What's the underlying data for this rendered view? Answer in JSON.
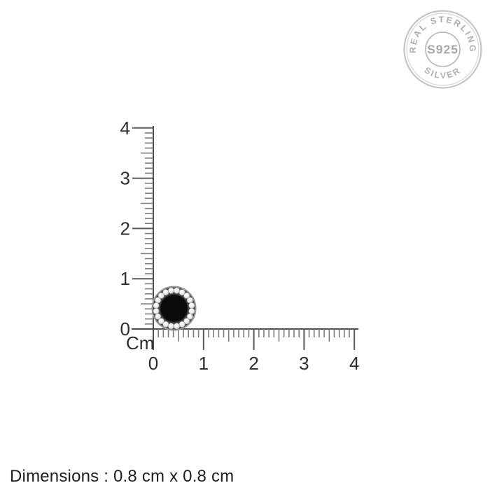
{
  "badge": {
    "arc_top_text": "REAL STERLING",
    "arc_bottom_text": "SILVER",
    "center_text": "S925",
    "ring_color": "#c5c5c5",
    "text_color": "#ababab"
  },
  "ruler": {
    "unit_label": "Cm",
    "vertical_labels": [
      "0",
      "1",
      "2",
      "3",
      "4"
    ],
    "horizontal_labels": [
      "0",
      "1",
      "2",
      "3",
      "4"
    ],
    "subdivisions_per_cm": 10,
    "line_color": "#4f4f4f",
    "major_tick_color": "#5a5a5a",
    "minor_tick_color": "#7b7b7b",
    "label_color": "#2e2e2e"
  },
  "product": {
    "name": "round black stone halo stud with clear stone border",
    "halo_stones_count": 20,
    "center_stone_color": "#0b0b0b",
    "halo_stone_color": "#f2f2f2",
    "metal_rim_color": "#959595",
    "setting_color": "#474747"
  },
  "caption": {
    "text": "Dimensions : 0.8 cm x 0.8 cm"
  }
}
